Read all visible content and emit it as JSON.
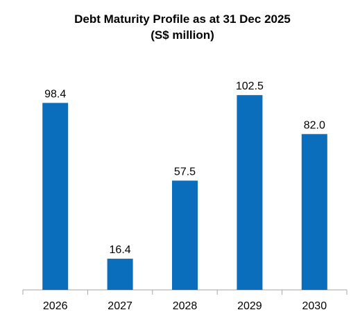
{
  "chart_data": {
    "type": "bar",
    "title": "Debt Maturity Profile as at 31 Dec 2025",
    "subtitle": "(S$ million)",
    "xlabel": "",
    "ylabel": "",
    "categories": [
      "2026",
      "2027",
      "2028",
      "2029",
      "2030"
    ],
    "values": [
      98.4,
      16.4,
      57.5,
      102.5,
      82.0
    ],
    "value_labels": [
      "98.4",
      "16.4",
      "57.5",
      "102.5",
      "82.0"
    ],
    "ylim": [
      0,
      105
    ],
    "grid": false,
    "legend": "none",
    "colors": {
      "bar": "#0A6EBD",
      "axis": "#A6A6A6",
      "text": "#000000"
    }
  }
}
